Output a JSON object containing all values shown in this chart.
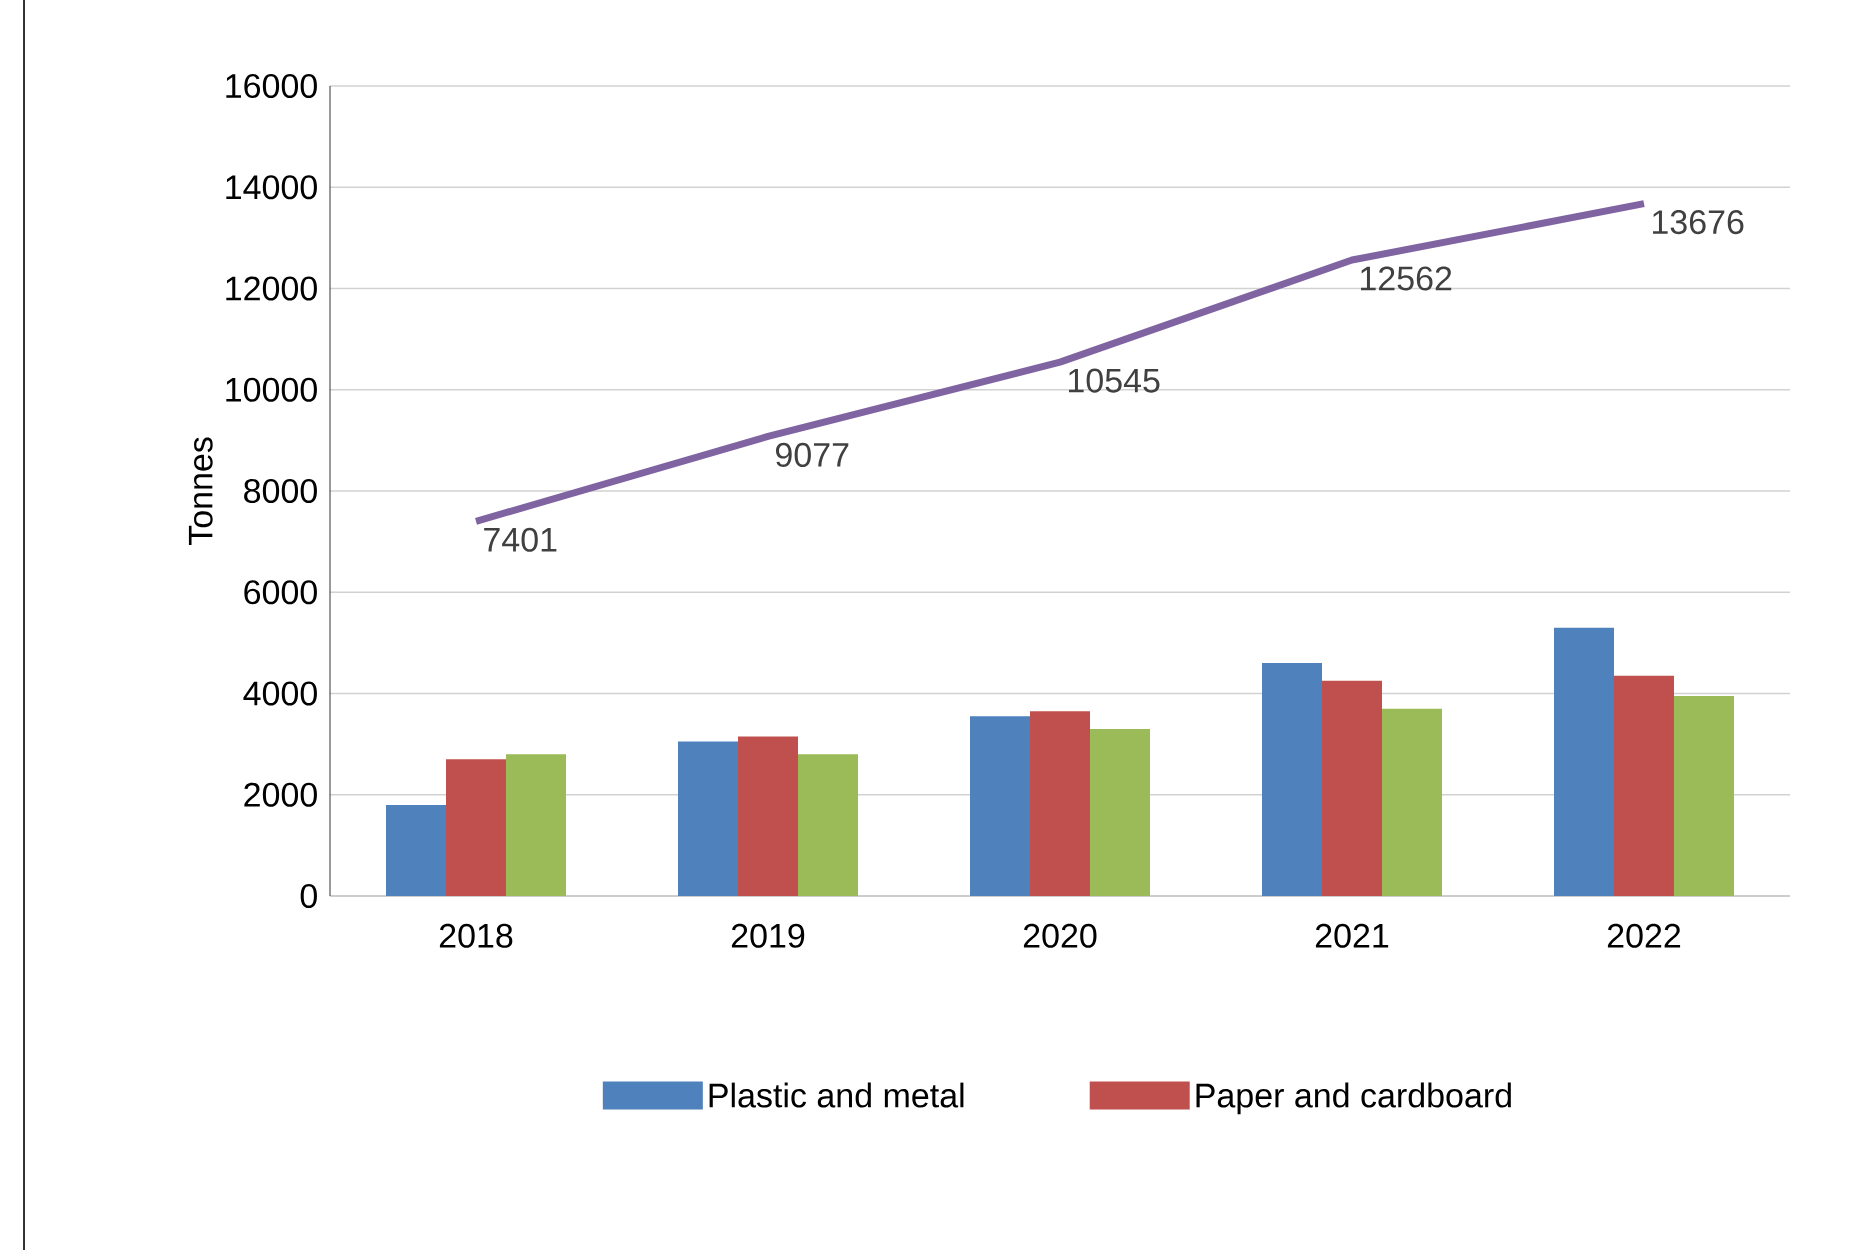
{
  "chart_data": {
    "type": "bar",
    "ylabel": "Tonnes",
    "categories": [
      "2018",
      "2019",
      "2020",
      "2021",
      "2022"
    ],
    "series": [
      {
        "name": "Plastic and metal",
        "color": "#4f81bd",
        "values": [
          1800,
          3050,
          3550,
          4600,
          5300
        ]
      },
      {
        "name": "Paper and cardboard",
        "color": "#c0504d",
        "values": [
          2700,
          3150,
          3650,
          4250,
          4350
        ]
      },
      {
        "color": "#9bbb59",
        "values": [
          2800,
          2800,
          3300,
          3700,
          3950
        ]
      },
      {
        "type": "line",
        "color": "#8064a2",
        "values": [
          7401,
          9077,
          10545,
          12562,
          13676
        ],
        "value_labels": [
          "7401",
          "9077",
          "10545",
          "12562",
          "13676"
        ],
        "marker": "none",
        "line_style": "solid"
      }
    ],
    "ylim": [
      0,
      16000
    ],
    "yticks": [
      0,
      2000,
      4000,
      6000,
      8000,
      10000,
      12000,
      14000,
      16000
    ],
    "grid": "y",
    "legend": "bottom"
  }
}
